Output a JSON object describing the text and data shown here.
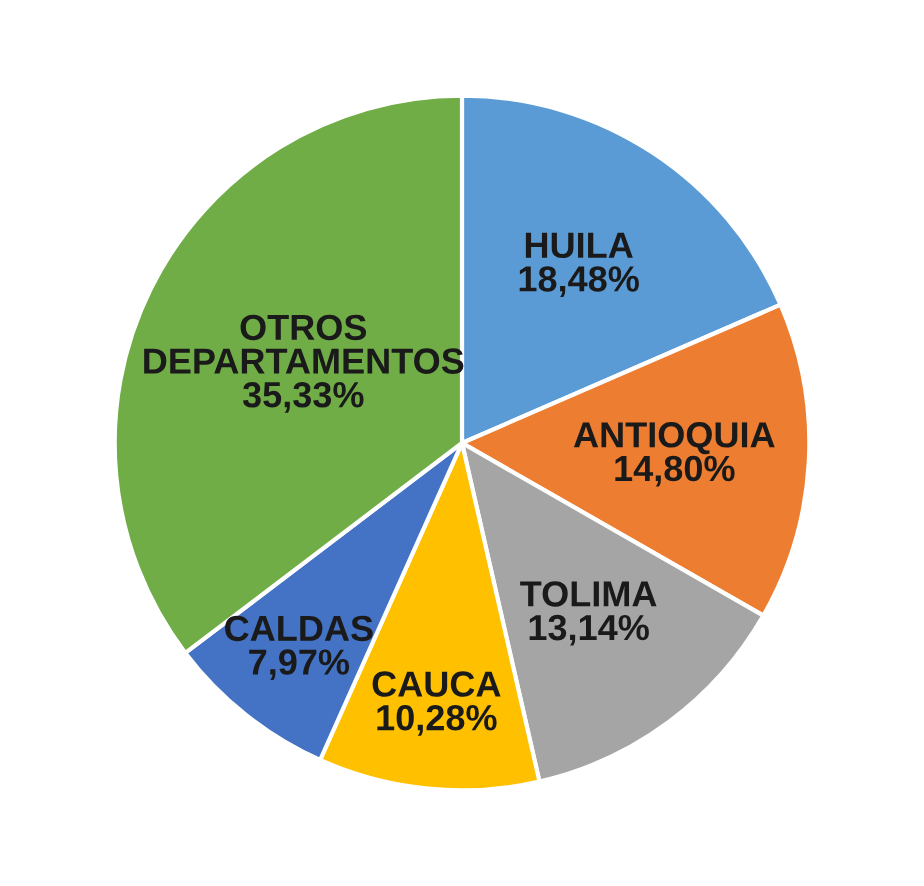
{
  "chart_data": {
    "type": "pie",
    "categories": [
      "HUILA",
      "ANTIOQUIA",
      "TOLIMA",
      "CAUCA",
      "CALDAS",
      "OTROS\nDEPARTAMENTOS"
    ],
    "values": [
      18.48,
      14.8,
      13.14,
      10.28,
      7.97,
      35.33
    ],
    "value_labels": [
      "18,48%",
      "14,80%",
      "13,14%",
      "10,28%",
      "7,97%",
      "35,33%"
    ],
    "colors": [
      "#5b9bd5",
      "#ed7d31",
      "#a5a5a5",
      "#ffc000",
      "#4472c4",
      "#70ad47"
    ]
  }
}
